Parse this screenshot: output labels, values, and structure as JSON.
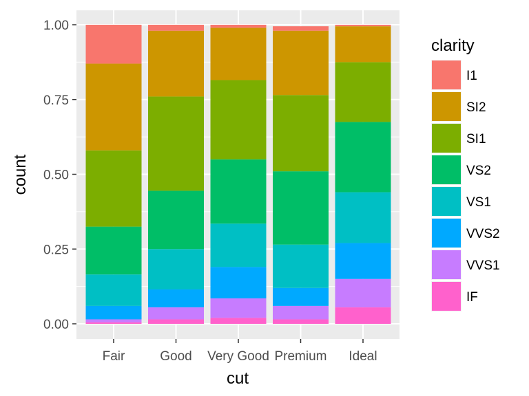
{
  "chart_data": {
    "type": "bar",
    "stacked": true,
    "position": "fill",
    "xlabel": "cut",
    "ylabel": "count",
    "ylim": [
      0,
      1
    ],
    "yticks": [
      "0.00",
      "0.25",
      "0.50",
      "0.75",
      "1.00"
    ],
    "categories": [
      "Fair",
      "Good",
      "Very Good",
      "Premium",
      "Ideal"
    ],
    "legend": {
      "title": "clarity",
      "placement": "right"
    },
    "grid": true,
    "series": [
      {
        "name": "I1",
        "color": "#F8766D",
        "values": [
          0.13,
          0.02,
          0.01,
          0.015,
          0.005
        ]
      },
      {
        "name": "SI2",
        "color": "#CD9600",
        "values": [
          0.29,
          0.22,
          0.175,
          0.215,
          0.12
        ]
      },
      {
        "name": "SI1",
        "color": "#7CAE00",
        "values": [
          0.255,
          0.315,
          0.265,
          0.255,
          0.2
        ]
      },
      {
        "name": "VS2",
        "color": "#00BE67",
        "values": [
          0.16,
          0.195,
          0.215,
          0.245,
          0.235
        ]
      },
      {
        "name": "VS1",
        "color": "#00BFC4",
        "values": [
          0.105,
          0.135,
          0.145,
          0.145,
          0.17
        ]
      },
      {
        "name": "VVS2",
        "color": "#00A9FF",
        "values": [
          0.045,
          0.06,
          0.105,
          0.06,
          0.12
        ]
      },
      {
        "name": "VVS1",
        "color": "#C77CFF",
        "values": [
          0.01,
          0.04,
          0.065,
          0.045,
          0.095
        ]
      },
      {
        "name": "IF",
        "color": "#FF61CC",
        "values": [
          0.005,
          0.015,
          0.02,
          0.015,
          0.055
        ]
      }
    ]
  }
}
